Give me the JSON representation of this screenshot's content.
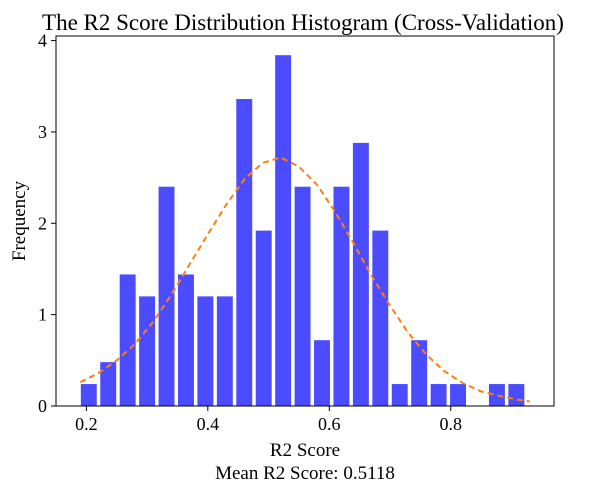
{
  "chart_data": {
    "type": "bar",
    "title": "The R2 Score Distribution Histogram (Cross-Validation)",
    "xlabel": "R2 Score",
    "subtitle": "Mean R2 Score: 0.5118",
    "ylabel": "Frequency",
    "xlim": [
      0.15,
      0.97
    ],
    "ylim": [
      0,
      4.05
    ],
    "xticks": [
      0.2,
      0.4,
      0.6,
      0.8
    ],
    "yticks": [
      0,
      1,
      2,
      3,
      4
    ],
    "bin_width": 0.032,
    "bars": [
      {
        "x": 0.204,
        "value": 0.24
      },
      {
        "x": 0.236,
        "value": 0.48
      },
      {
        "x": 0.268,
        "value": 1.44
      },
      {
        "x": 0.3,
        "value": 1.2
      },
      {
        "x": 0.332,
        "value": 2.4
      },
      {
        "x": 0.364,
        "value": 1.44
      },
      {
        "x": 0.396,
        "value": 1.2
      },
      {
        "x": 0.428,
        "value": 1.2
      },
      {
        "x": 0.46,
        "value": 3.36
      },
      {
        "x": 0.492,
        "value": 1.92
      },
      {
        "x": 0.524,
        "value": 3.84
      },
      {
        "x": 0.556,
        "value": 2.4
      },
      {
        "x": 0.588,
        "value": 0.72
      },
      {
        "x": 0.62,
        "value": 2.4
      },
      {
        "x": 0.652,
        "value": 2.88
      },
      {
        "x": 0.684,
        "value": 1.92
      },
      {
        "x": 0.716,
        "value": 0.24
      },
      {
        "x": 0.748,
        "value": 0.72
      },
      {
        "x": 0.78,
        "value": 0.24
      },
      {
        "x": 0.812,
        "value": 0.24
      },
      {
        "x": 0.876,
        "value": 0.24
      },
      {
        "x": 0.908,
        "value": 0.24
      }
    ],
    "bar_color": "#4b4bff",
    "curve": {
      "style": "dashed",
      "color": "#ff7f0e",
      "points": [
        [
          0.19,
          0.26
        ],
        [
          0.22,
          0.36
        ],
        [
          0.25,
          0.5
        ],
        [
          0.28,
          0.68
        ],
        [
          0.31,
          0.92
        ],
        [
          0.34,
          1.22
        ],
        [
          0.37,
          1.55
        ],
        [
          0.4,
          1.88
        ],
        [
          0.43,
          2.2
        ],
        [
          0.46,
          2.48
        ],
        [
          0.49,
          2.66
        ],
        [
          0.52,
          2.72
        ],
        [
          0.55,
          2.62
        ],
        [
          0.58,
          2.42
        ],
        [
          0.61,
          2.12
        ],
        [
          0.64,
          1.78
        ],
        [
          0.67,
          1.42
        ],
        [
          0.7,
          1.1
        ],
        [
          0.73,
          0.8
        ],
        [
          0.76,
          0.56
        ],
        [
          0.79,
          0.38
        ],
        [
          0.82,
          0.25
        ],
        [
          0.85,
          0.16
        ],
        [
          0.88,
          0.11
        ],
        [
          0.91,
          0.07
        ],
        [
          0.93,
          0.05
        ]
      ]
    },
    "grid": false,
    "legend": "none"
  }
}
